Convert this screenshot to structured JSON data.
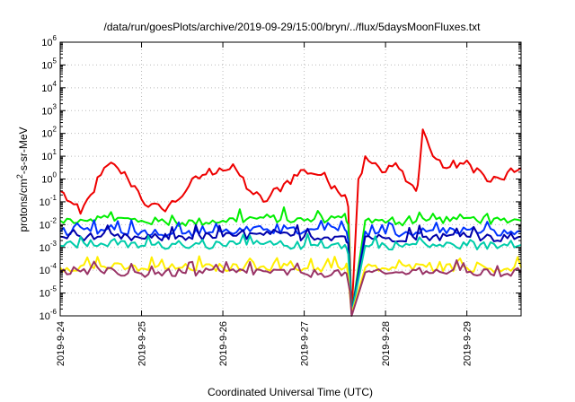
{
  "chart_data": {
    "type": "line",
    "title": "/data/run/goesPlots/archive/2019-09-29/15:00/bryn/../flux/5daysMoonFluxes.txt",
    "xlabel": "Coordinated Universal Time (UTC)",
    "ylabel_parts": {
      "base": "protons/cm",
      "sup": "2",
      "rest": "-s-sr-MeV"
    },
    "y_scale": "log",
    "ylim": [
      1e-06,
      1000000.0
    ],
    "xlim": [
      "2019-09-24T00:00",
      "2019-09-29T16:00"
    ],
    "x_tick_labels": [
      "2019-9-24",
      "2019-9-25",
      "2019-9-26",
      "2019-9-27",
      "2019-9-28",
      "2019-9-29"
    ],
    "y_ticks": [
      {
        "value": 1e-06,
        "base": "10",
        "exp": "-6"
      },
      {
        "value": 1e-05,
        "base": "10",
        "exp": "-5"
      },
      {
        "value": 0.0001,
        "base": "10",
        "exp": "-4"
      },
      {
        "value": 0.001,
        "base": "10",
        "exp": "-3"
      },
      {
        "value": 0.01,
        "base": "10",
        "exp": "-2"
      },
      {
        "value": 0.1,
        "base": "10",
        "exp": "-1"
      },
      {
        "value": 1,
        "base": "10",
        "exp": "0"
      },
      {
        "value": 10.0,
        "base": "10",
        "exp": "1"
      },
      {
        "value": 100.0,
        "base": "10",
        "exp": "2"
      },
      {
        "value": 1000.0,
        "base": "10",
        "exp": "3"
      },
      {
        "value": 10000.0,
        "base": "10",
        "exp": "4"
      },
      {
        "value": 100000.0,
        "base": "10",
        "exp": "5"
      },
      {
        "value": 1000000.0,
        "base": "10",
        "exp": "6"
      }
    ],
    "grid": true,
    "legend": "none",
    "series": [
      {
        "color": "#ee0000",
        "x": [
          "2019-09-24T00:00",
          "2019-09-24T03:00",
          "2019-09-24T06:00",
          "2019-09-24T09:00",
          "2019-09-24T12:00",
          "2019-09-24T14:00",
          "2019-09-24T17:00",
          "2019-09-24T20:00",
          "2019-09-24T23:00",
          "2019-09-25T02:00",
          "2019-09-25T06:00",
          "2019-09-25T10:00",
          "2019-09-25T14:00",
          "2019-09-25T18:00",
          "2019-09-25T23:00",
          "2019-09-26T04:00",
          "2019-09-26T08:00",
          "2019-09-26T12:00",
          "2019-09-26T18:00",
          "2019-09-27T00:00",
          "2019-09-27T05:00",
          "2019-09-27T09:00",
          "2019-09-27T12:00",
          "2019-09-27T13:00",
          "2019-09-27T14:00",
          "2019-09-27T16:00",
          "2019-09-27T18:00",
          "2019-09-27T21:00",
          "2019-09-28T00:00",
          "2019-09-28T03:00",
          "2019-09-28T06:00",
          "2019-09-28T09:00",
          "2019-09-28T10:00",
          "2019-09-28T11:00",
          "2019-09-28T14:00",
          "2019-09-28T18:00",
          "2019-09-28T22:00",
          "2019-09-29T03:00",
          "2019-09-29T06:00",
          "2019-09-29T10:00",
          "2019-09-29T14:00",
          "2019-09-29T16:00"
        ],
        "y": [
          0.3,
          0.1,
          0.03,
          0.2,
          1.5,
          4,
          3,
          1,
          0.3,
          0.06,
          0.05,
          0.1,
          0.5,
          1.5,
          3,
          2.5,
          0.3,
          0.1,
          0.6,
          2.5,
          1.5,
          0.5,
          0.2,
          0.06,
          1.2e-06,
          1,
          10,
          5,
          2,
          5,
          0.8,
          0.3,
          3,
          150,
          10,
          3,
          5,
          3,
          0.8,
          1,
          2,
          3
        ]
      },
      {
        "color": "#00ee00",
        "x": [
          "2019-09-24T00:00",
          "2019-09-24T12:00",
          "2019-09-25T00:00",
          "2019-09-25T12:00",
          "2019-09-26T00:00",
          "2019-09-26T12:00",
          "2019-09-27T00:00",
          "2019-09-27T09:00",
          "2019-09-27T12:00",
          "2019-09-27T13:00",
          "2019-09-27T14:00",
          "2019-09-27T18:00",
          "2019-09-28T00:00",
          "2019-09-28T12:00",
          "2019-09-29T00:00",
          "2019-09-29T12:00",
          "2019-09-29T16:00"
        ],
        "y": [
          0.015,
          0.02,
          0.015,
          0.012,
          0.015,
          0.02,
          0.015,
          0.02,
          0.03,
          0.01,
          1.2e-06,
          0.015,
          0.012,
          0.015,
          0.02,
          0.012,
          0.015
        ]
      },
      {
        "color": "#0033ff",
        "x": [
          "2019-09-24T00:00",
          "2019-09-24T12:00",
          "2019-09-25T00:00",
          "2019-09-25T12:00",
          "2019-09-26T00:00",
          "2019-09-26T12:00",
          "2019-09-27T00:00",
          "2019-09-27T12:00",
          "2019-09-27T13:00",
          "2019-09-27T14:00",
          "2019-09-27T18:00",
          "2019-09-28T00:00",
          "2019-09-28T12:00",
          "2019-09-29T00:00",
          "2019-09-29T12:00",
          "2019-09-29T16:00"
        ],
        "y": [
          0.005,
          0.006,
          0.005,
          0.004,
          0.005,
          0.006,
          0.005,
          0.006,
          0.002,
          1.2e-06,
          0.005,
          0.004,
          0.005,
          0.006,
          0.004,
          0.005
        ]
      },
      {
        "color": "#0000aa",
        "x": [
          "2019-09-24T00:00",
          "2019-09-24T12:00",
          "2019-09-25T00:00",
          "2019-09-25T12:00",
          "2019-09-26T00:00",
          "2019-09-26T12:00",
          "2019-09-27T00:00",
          "2019-09-27T12:00",
          "2019-09-27T13:00",
          "2019-09-27T14:00",
          "2019-09-27T18:00",
          "2019-09-28T00:00",
          "2019-09-28T12:00",
          "2019-09-29T00:00",
          "2019-09-29T12:00",
          "2019-09-29T16:00"
        ],
        "y": [
          0.003,
          0.003,
          0.0025,
          0.003,
          0.003,
          0.0035,
          0.003,
          0.003,
          0.0015,
          1.2e-06,
          0.003,
          0.0025,
          0.003,
          0.003,
          0.0025,
          0.003
        ]
      },
      {
        "color": "#00ccaa",
        "x": [
          "2019-09-24T00:00",
          "2019-09-24T12:00",
          "2019-09-25T00:00",
          "2019-09-25T12:00",
          "2019-09-26T00:00",
          "2019-09-26T12:00",
          "2019-09-27T00:00",
          "2019-09-27T12:00",
          "2019-09-27T13:00",
          "2019-09-27T14:00",
          "2019-09-27T18:00",
          "2019-09-28T00:00",
          "2019-09-28T12:00",
          "2019-09-29T00:00",
          "2019-09-29T12:00",
          "2019-09-29T16:00"
        ],
        "y": [
          0.0012,
          0.0015,
          0.0012,
          0.0013,
          0.0012,
          0.0014,
          0.0012,
          0.0013,
          0.0005,
          1.2e-06,
          0.0012,
          0.0012,
          0.0013,
          0.0012,
          0.0012,
          0.0013
        ]
      },
      {
        "color": "#ffee00",
        "x": [
          "2019-09-24T00:00",
          "2019-09-24T12:00",
          "2019-09-25T00:00",
          "2019-09-25T12:00",
          "2019-09-26T00:00",
          "2019-09-26T12:00",
          "2019-09-27T00:00",
          "2019-09-27T12:00",
          "2019-09-27T13:00",
          "2019-09-27T14:00",
          "2019-09-27T18:00",
          "2019-09-28T00:00",
          "2019-09-28T12:00",
          "2019-09-29T00:00",
          "2019-09-29T12:00",
          "2019-09-29T16:00"
        ],
        "y": [
          0.00013,
          0.00015,
          0.00012,
          0.00013,
          0.00013,
          0.00015,
          0.00012,
          0.00013,
          5e-05,
          1.2e-06,
          0.00013,
          0.00012,
          0.00014,
          0.00013,
          0.00012,
          0.00013
        ]
      },
      {
        "color": "#993366",
        "x": [
          "2019-09-24T00:00",
          "2019-09-24T12:00",
          "2019-09-25T00:00",
          "2019-09-25T12:00",
          "2019-09-26T00:00",
          "2019-09-26T12:00",
          "2019-09-27T00:00",
          "2019-09-27T12:00",
          "2019-09-27T13:00",
          "2019-09-27T14:00",
          "2019-09-27T18:00",
          "2019-09-28T00:00",
          "2019-09-28T12:00",
          "2019-09-29T00:00",
          "2019-09-29T12:00",
          "2019-09-29T16:00"
        ],
        "y": [
          8e-05,
          9e-05,
          7e-05,
          8e-05,
          8e-05,
          9e-05,
          7e-05,
          8e-05,
          3e-05,
          1e-06,
          8e-05,
          7e-05,
          9e-05,
          8e-05,
          7e-05,
          8e-05
        ]
      }
    ]
  }
}
